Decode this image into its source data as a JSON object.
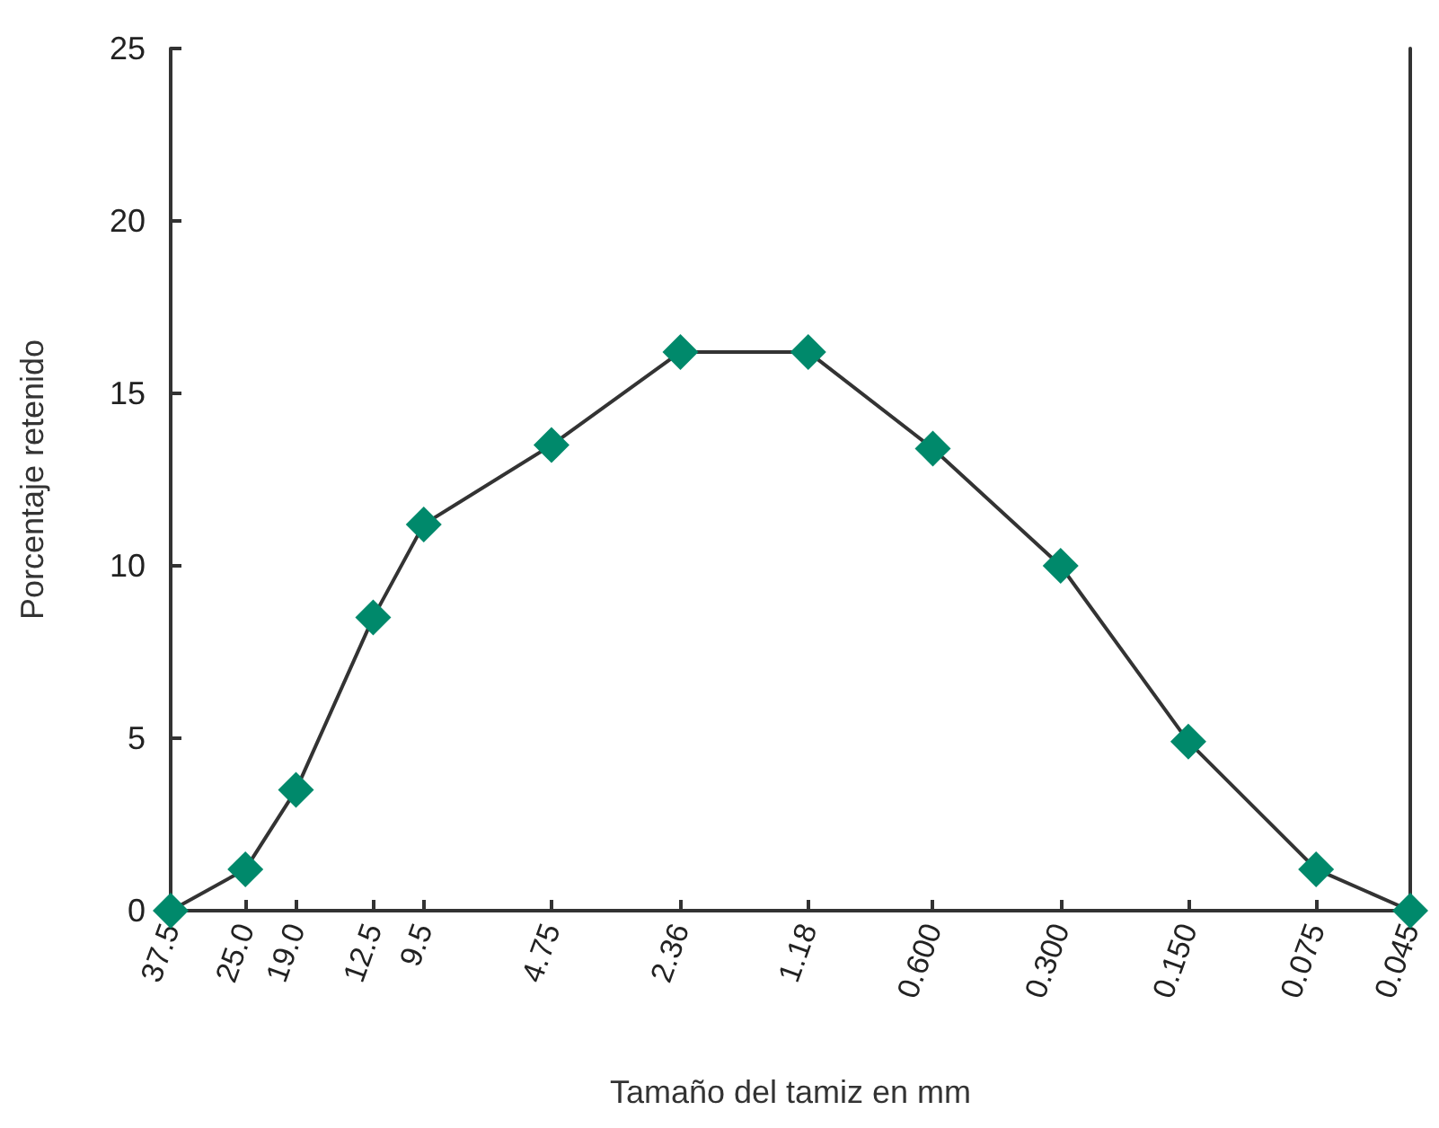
{
  "chart_data": {
    "type": "line",
    "xlabel": "Tamaño del tamiz en mm",
    "ylabel": "Porcentaje retenido",
    "x": [
      37.5,
      25.0,
      19.0,
      12.5,
      9.5,
      4.75,
      2.36,
      1.18,
      0.6,
      0.3,
      0.15,
      0.075,
      0.045
    ],
    "series": [
      {
        "color": "#00896b",
        "values": [
          0,
          1.2,
          3.5,
          8.5,
          11.2,
          13.5,
          16.2,
          16.2,
          13.4,
          10.0,
          4.9,
          1.2,
          0
        ]
      }
    ],
    "log": "x",
    "xlim": [
      37.5,
      0.045
    ],
    "xticks": [
      {
        "value": 37.5,
        "label": "37.5"
      },
      {
        "value": 25.0,
        "label": "25.0"
      },
      {
        "value": 19.0,
        "label": "19.0"
      },
      {
        "value": 12.5,
        "label": "12.5"
      },
      {
        "value": 9.5,
        "label": "9.5"
      },
      {
        "value": 4.75,
        "label": "4.75"
      },
      {
        "value": 2.36,
        "label": "2.36"
      },
      {
        "value": 1.18,
        "label": "1.18"
      },
      {
        "value": 0.6,
        "label": "0.600"
      },
      {
        "value": 0.3,
        "label": "0.300"
      },
      {
        "value": 0.15,
        "label": "0.150"
      },
      {
        "value": 0.075,
        "label": "0.075"
      },
      {
        "value": 0.045,
        "label": "0.045"
      }
    ],
    "ylim": [
      0,
      25
    ],
    "yticks": [
      0,
      5,
      10,
      15,
      20,
      25
    ],
    "grid": false,
    "marker": "diamond",
    "line_style": "solid"
  }
}
